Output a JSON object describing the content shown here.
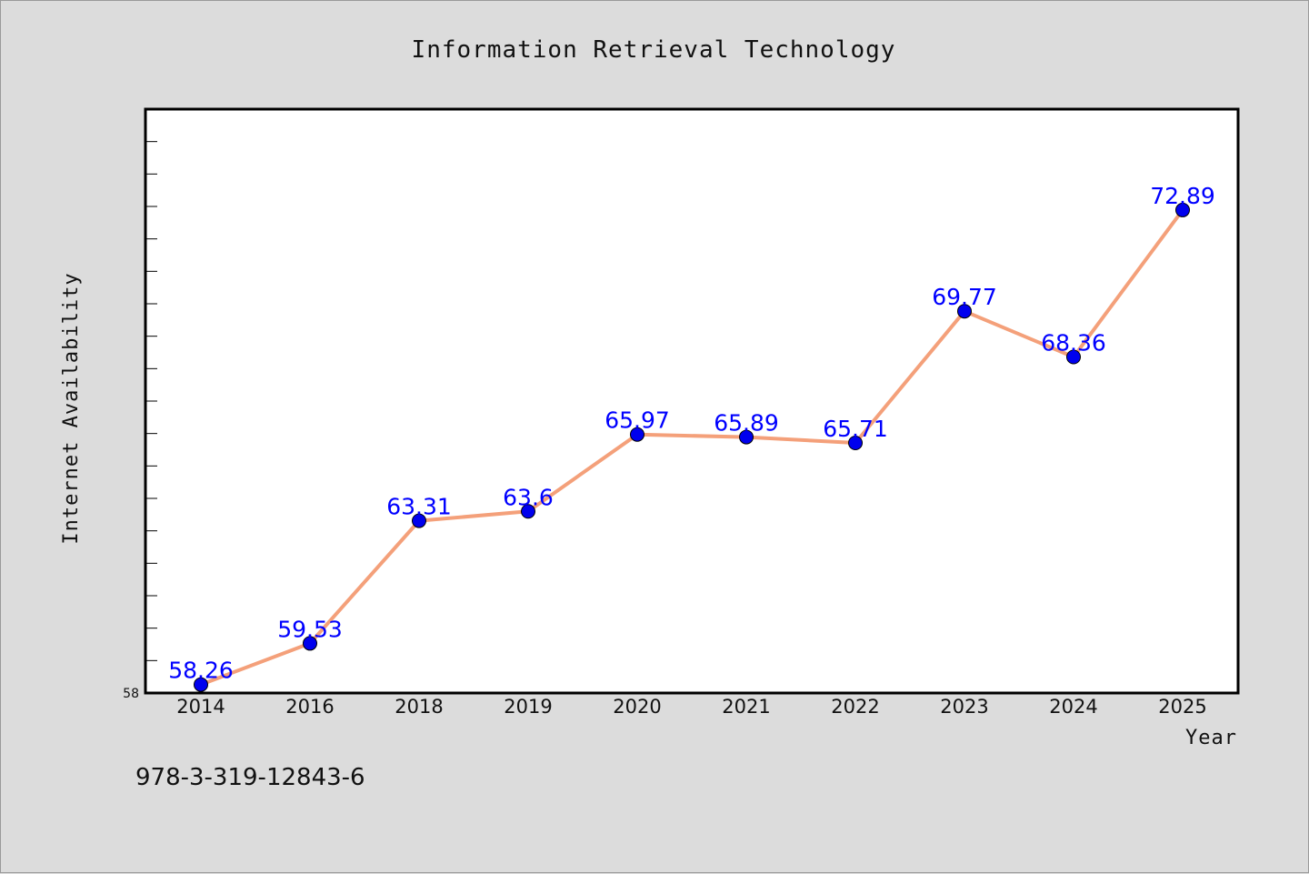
{
  "chart_data": {
    "type": "line",
    "title": "Information Retrieval Technology",
    "xlabel": "Year",
    "ylabel": "Internet Availability",
    "categories": [
      "2014",
      "2016",
      "2018",
      "2019",
      "2020",
      "2021",
      "2022",
      "2023",
      "2024",
      "2025"
    ],
    "series": [
      {
        "values": [
          58.26,
          59.53,
          63.31,
          63.6,
          65.97,
          65.89,
          65.71,
          69.77,
          68.36,
          72.89
        ],
        "labels": [
          "58.26",
          "59.53",
          "63.31",
          "63.6",
          "65.97",
          "65.89",
          "65.71",
          "69.77",
          "68.36",
          "72.89"
        ],
        "line_color": "#f4a07a",
        "marker_color": "#0000ee"
      }
    ],
    "ylim": [
      58,
      76
    ],
    "ytick_labels_shown": [
      "58"
    ],
    "grid": false,
    "legend": "none"
  },
  "footer": {
    "isbn": "978-3-319-12843-6"
  }
}
